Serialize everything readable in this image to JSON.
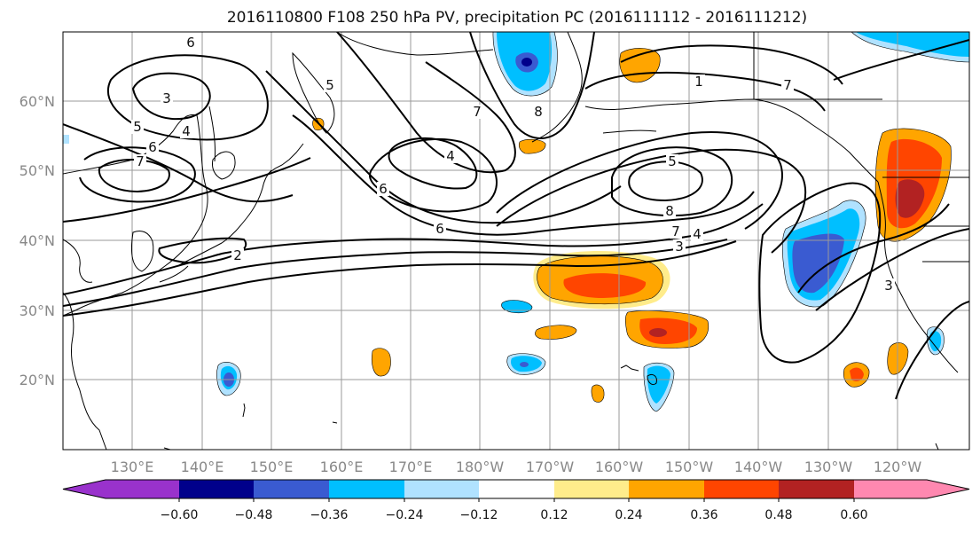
{
  "title": "2016110800 F108 250 hPa PV, precipitation PC (2016111112 - 2016111212)",
  "map": {
    "lon_ticks": [
      "130°E",
      "140°E",
      "150°E",
      "160°E",
      "170°E",
      "180°W",
      "170°W",
      "160°W",
      "150°W",
      "140°W",
      "130°W",
      "120°W"
    ],
    "lat_ticks": [
      "60°N",
      "50°N",
      "40°N",
      "30°N",
      "20°N"
    ],
    "grid": true,
    "pv_contour_color": "#000000",
    "pv_contour_labels": [
      "6",
      "3",
      "5",
      "6",
      "7",
      "5",
      "4",
      "7",
      "8",
      "6",
      "7",
      "4",
      "6",
      "5",
      "8",
      "7",
      "4",
      "3",
      "2",
      "3",
      "1"
    ]
  },
  "colorbar": {
    "ticks": [
      "−0.60",
      "−0.48",
      "−0.36",
      "−0.24",
      "−0.12",
      "0.12",
      "0.24",
      "0.36",
      "0.48",
      "0.60"
    ],
    "colors": [
      "#9932cc",
      "#00008b",
      "#3a5bd1",
      "#00bfff",
      "#b0e2ff",
      "#ffffff",
      "#ffec8b",
      "#ffa500",
      "#ff4500",
      "#b22222",
      "#ff88b0"
    ],
    "extend": "both"
  }
}
